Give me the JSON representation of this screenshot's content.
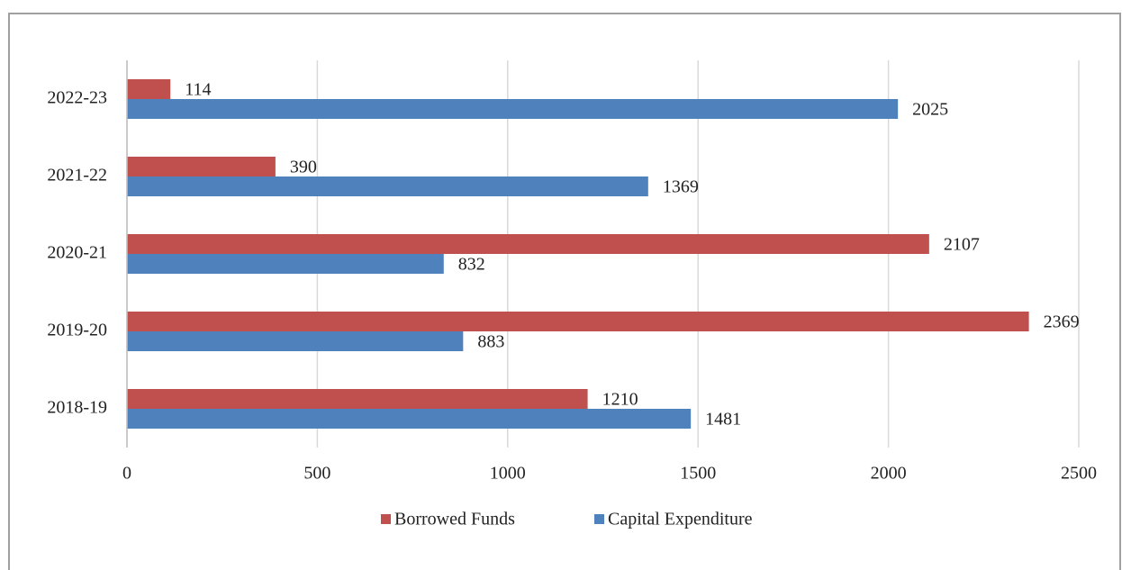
{
  "chart_data": {
    "type": "hbar",
    "categories": [
      "2018-19",
      "2019-20",
      "2020-21",
      "2021-22",
      "2022-23"
    ],
    "series": [
      {
        "name": "Borrowed Funds",
        "color": "#c0504d",
        "values": [
          1210,
          2369,
          2107,
          390,
          114
        ]
      },
      {
        "name": "Capital Expenditure",
        "color": "#4f81bd",
        "values": [
          1481,
          883,
          832,
          1369,
          2025
        ]
      }
    ],
    "xlim": [
      0,
      2500
    ],
    "xticks": [
      0,
      500,
      1000,
      1500,
      2000,
      2500
    ],
    "grid": true,
    "legend": "bottom"
  }
}
